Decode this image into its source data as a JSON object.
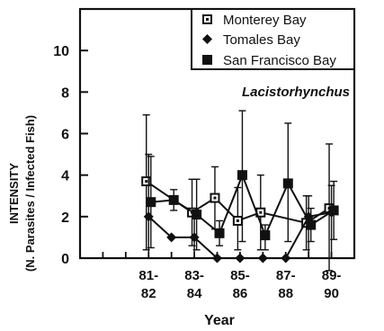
{
  "chart_data": {
    "type": "line",
    "annotation": "Lacistorhynchus",
    "ylabel_line1": "INTENSITY",
    "ylabel_line2": "(N. Parasites / Infected Fish)",
    "xlabel": "Year",
    "ylim": [
      0,
      12
    ],
    "y_ticks": [
      0,
      2,
      4,
      6,
      8,
      10
    ],
    "x_ticks": [
      {
        "top": "81-",
        "bottom": "82",
        "x": 3
      },
      {
        "top": "83-",
        "bottom": "84",
        "x": 5
      },
      {
        "top": "85-",
        "bottom": "86",
        "x": 7
      },
      {
        "top": "87-",
        "bottom": "88",
        "x": 9
      },
      {
        "top": "89-",
        "bottom": "90",
        "x": 11
      }
    ],
    "xlim": [
      0,
      12
    ],
    "legend_position": "top-right",
    "series": [
      {
        "name": "Monterey Bay",
        "marker": "square-dot",
        "points": [
          {
            "x": 2.9,
            "y": 3.7,
            "lo": 0.4,
            "hi": 6.9
          },
          {
            "x": 4.9,
            "y": 2.2,
            "lo": 0.6,
            "hi": 3.8
          },
          {
            "x": 5.9,
            "y": 2.9,
            "lo": 1.4,
            "hi": 4.4
          },
          {
            "x": 6.9,
            "y": 1.8,
            "lo": 0.4,
            "hi": 3.4
          },
          {
            "x": 7.9,
            "y": 2.2,
            "lo": 0.4,
            "hi": 4.0
          },
          {
            "x": 9.9,
            "y": 1.7,
            "lo": 0.4,
            "hi": 3.0
          },
          {
            "x": 10.9,
            "y": 2.4,
            "lo": -0.6,
            "hi": 5.5
          }
        ]
      },
      {
        "name": "Tomales Bay",
        "marker": "diamond",
        "points": [
          {
            "x": 3.0,
            "y": 2.0,
            "lo": 0.0,
            "hi": 5.0
          },
          {
            "x": 4.0,
            "y": 1.0
          },
          {
            "x": 5.0,
            "y": 1.0,
            "lo": 0.0,
            "hi": 2.0
          },
          {
            "x": 6.0,
            "y": 0.0
          },
          {
            "x": 7.0,
            "y": 0.0
          },
          {
            "x": 8.0,
            "y": 0.0
          },
          {
            "x": 9.0,
            "y": 0.0
          },
          {
            "x": 10.0,
            "y": 2.0,
            "lo": 0.0,
            "hi": 3.0
          },
          {
            "x": 11.0,
            "y": 2.2,
            "lo": 0.0,
            "hi": 3.5
          }
        ]
      },
      {
        "name": "San Francisco Bay",
        "marker": "square",
        "points": [
          {
            "x": 3.1,
            "y": 2.7,
            "lo": 0.5,
            "hi": 4.9
          },
          {
            "x": 4.1,
            "y": 2.8,
            "lo": 2.3,
            "hi": 3.3
          },
          {
            "x": 5.1,
            "y": 2.1,
            "lo": 0.4,
            "hi": 3.8
          },
          {
            "x": 6.1,
            "y": 1.2,
            "lo": 0.6,
            "hi": 1.8
          },
          {
            "x": 7.1,
            "y": 4.0,
            "lo": 0.8,
            "hi": 7.1
          },
          {
            "x": 8.1,
            "y": 1.1,
            "lo": 0.4,
            "hi": 1.6
          },
          {
            "x": 9.1,
            "y": 3.6,
            "lo": 0.8,
            "hi": 6.5
          },
          {
            "x": 10.1,
            "y": 1.6,
            "lo": 0.8,
            "hi": 2.4
          },
          {
            "x": 11.1,
            "y": 2.3,
            "lo": 0.9,
            "hi": 3.7
          }
        ]
      }
    ]
  }
}
